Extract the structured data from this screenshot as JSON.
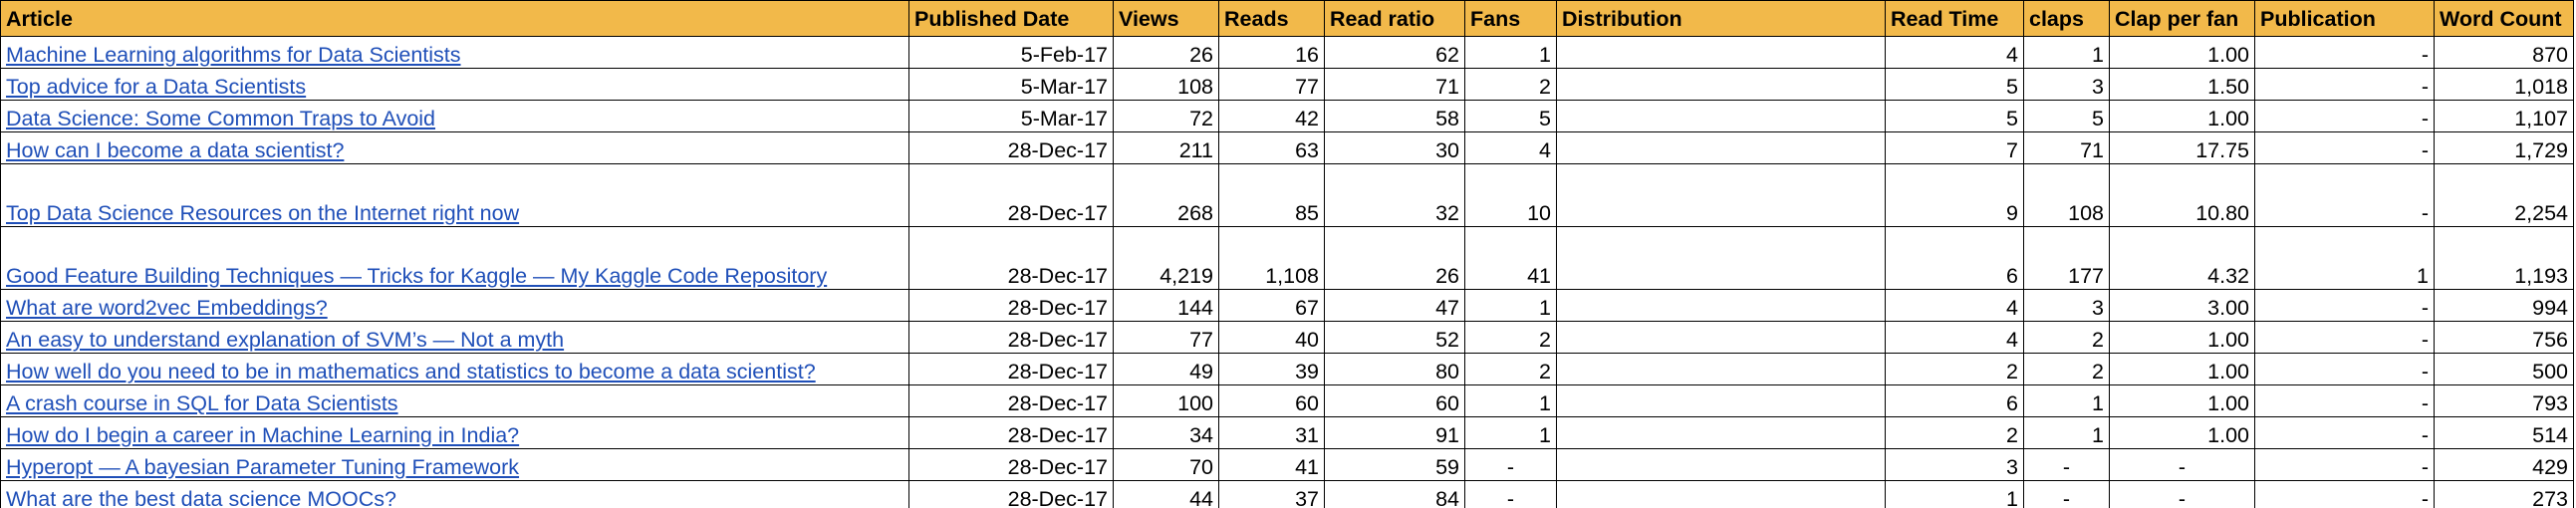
{
  "columns": [
    "Article",
    "Published Date",
    "Views",
    "Reads",
    "Read ratio",
    "Fans",
    "Distribution",
    "Read Time",
    "claps",
    "Clap per fan",
    "Publication",
    "Word Count"
  ],
  "colors": {
    "header_bg": "#f2b94a",
    "link": "#1f4fb8"
  },
  "rows": [
    {
      "article": "Machine Learning algorithms for Data Scientists",
      "date": "5-Feb-17",
      "views": "26",
      "reads": "16",
      "ratio": "62",
      "fans": "1",
      "distribution": "",
      "read_time": "4",
      "claps": "1",
      "clap_per_fan": "1.00",
      "publication": "-",
      "word_count": "870"
    },
    {
      "article": "Top advice for a Data Scientists",
      "date": "5-Mar-17",
      "views": "108",
      "reads": "77",
      "ratio": "71",
      "fans": "2",
      "distribution": "",
      "read_time": "5",
      "claps": "3",
      "clap_per_fan": "1.50",
      "publication": "-",
      "word_count": "1,018"
    },
    {
      "article": "Data Science: Some Common Traps to Avoid",
      "date": "5-Mar-17",
      "views": "72",
      "reads": "42",
      "ratio": "58",
      "fans": "5",
      "distribution": "",
      "read_time": "5",
      "claps": "5",
      "clap_per_fan": "1.00",
      "publication": "-",
      "word_count": "1,107"
    },
    {
      "article": "How can I become a data scientist?",
      "date": "28-Dec-17",
      "views": "211",
      "reads": "63",
      "ratio": "30",
      "fans": "4",
      "distribution": "",
      "read_time": "7",
      "claps": "71",
      "clap_per_fan": "17.75",
      "publication": "-",
      "word_count": "1,729"
    },
    {
      "article": "Top Data Science Resources on the Internet right now",
      "date": "28-Dec-17",
      "views": "268",
      "reads": "85",
      "ratio": "32",
      "fans": "10",
      "distribution": "",
      "read_time": "9",
      "claps": "108",
      "clap_per_fan": "10.80",
      "publication": "-",
      "word_count": "2,254"
    },
    {
      "article": "Good Feature Building Techniques — Tricks for Kaggle — My Kaggle Code Repository",
      "date": "28-Dec-17",
      "views": "4,219",
      "reads": "1,108",
      "ratio": "26",
      "fans": "41",
      "distribution": "",
      "read_time": "6",
      "claps": "177",
      "clap_per_fan": "4.32",
      "publication": "1",
      "word_count": "1,193"
    },
    {
      "article": "What are word2vec Embeddings?",
      "date": "28-Dec-17",
      "views": "144",
      "reads": "67",
      "ratio": "47",
      "fans": "1",
      "distribution": "",
      "read_time": "4",
      "claps": "3",
      "clap_per_fan": "3.00",
      "publication": "-",
      "word_count": "994"
    },
    {
      "article": "An easy to understand explanation of SVM’s — Not a myth",
      "date": "28-Dec-17",
      "views": "77",
      "reads": "40",
      "ratio": "52",
      "fans": "2",
      "distribution": "",
      "read_time": "4",
      "claps": "2",
      "clap_per_fan": "1.00",
      "publication": "-",
      "word_count": "756"
    },
    {
      "article": "How well do you need to be in mathematics and statistics to become a data scientist?",
      "date": "28-Dec-17",
      "views": "49",
      "reads": "39",
      "ratio": "80",
      "fans": "2",
      "distribution": "",
      "read_time": "2",
      "claps": "2",
      "clap_per_fan": "1.00",
      "publication": "-",
      "word_count": "500"
    },
    {
      "article": "A crash course in SQL for Data Scientists",
      "date": "28-Dec-17",
      "views": "100",
      "reads": "60",
      "ratio": "60",
      "fans": "1",
      "distribution": "",
      "read_time": "6",
      "claps": "1",
      "clap_per_fan": "1.00",
      "publication": "-",
      "word_count": "793"
    },
    {
      "article": "How do I begin a career in Machine Learning in India?",
      "date": "28-Dec-17",
      "views": "34",
      "reads": "31",
      "ratio": "91",
      "fans": "1",
      "distribution": "",
      "read_time": "2",
      "claps": "1",
      "clap_per_fan": "1.00",
      "publication": "-",
      "word_count": "514"
    },
    {
      "article": "Hyperopt — A bayesian Parameter Tuning Framework",
      "date": "28-Dec-17",
      "views": "70",
      "reads": "41",
      "ratio": "59",
      "fans": "-",
      "distribution": "",
      "read_time": "3",
      "claps": "-",
      "clap_per_fan": "-",
      "publication": "-",
      "word_count": "429"
    },
    {
      "article": "What are the best data science MOOCs?",
      "date": "28-Dec-17",
      "views": "44",
      "reads": "37",
      "ratio": "84",
      "fans": "-",
      "distribution": "",
      "read_time": "1",
      "claps": "-",
      "clap_per_fan": "-",
      "publication": "-",
      "word_count": "273"
    }
  ]
}
